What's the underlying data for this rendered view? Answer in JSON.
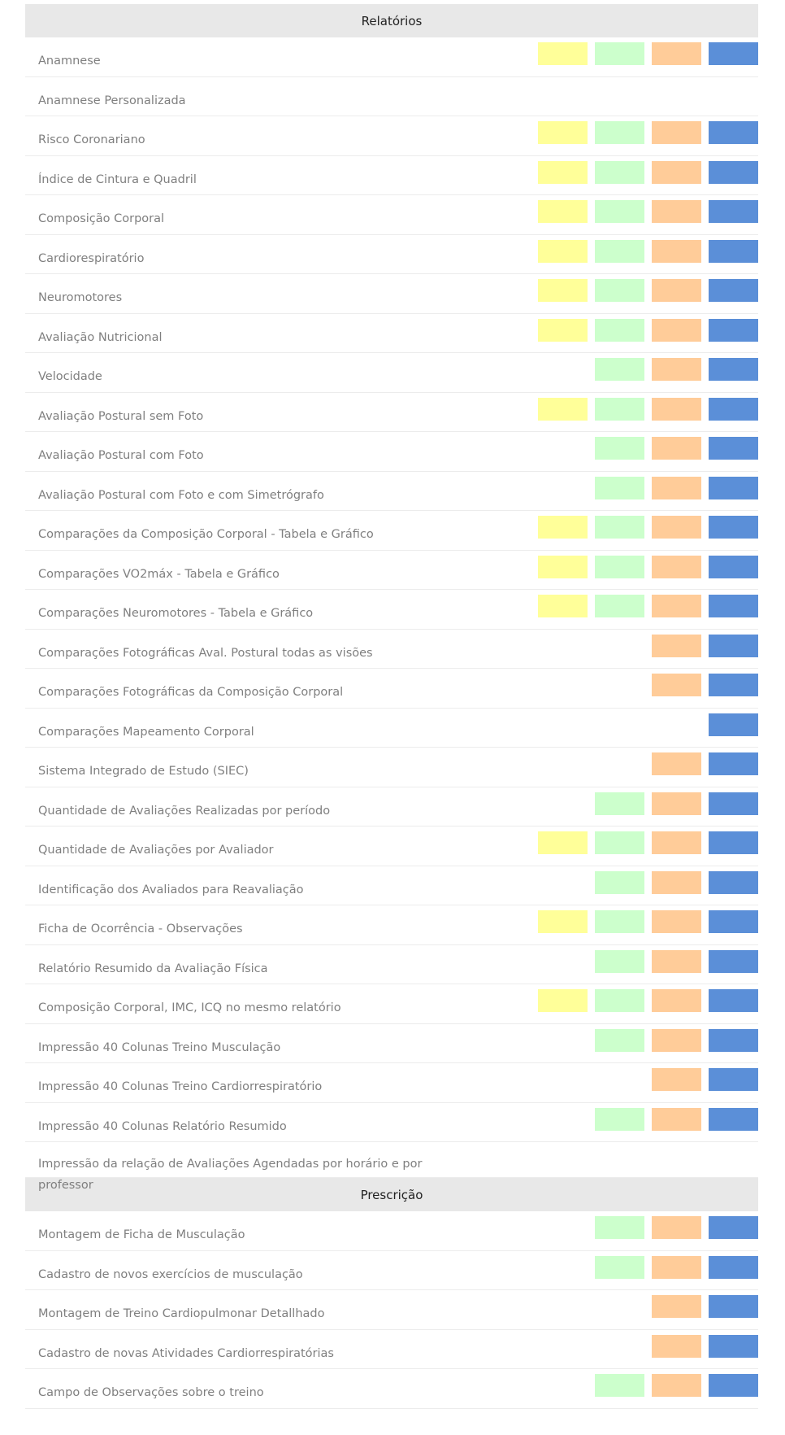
{
  "colors": {
    "yellow": "#ffff99",
    "green": "#ccffcc",
    "orange": "#ffcc99",
    "blue": "#5b8fd8"
  },
  "sections": [
    {
      "title": "Relatórios",
      "rows": [
        {
          "label": "Anamnese",
          "cells": [
            true,
            true,
            true,
            true
          ]
        },
        {
          "label": "Anamnese Personalizada",
          "cells": [
            false,
            false,
            false,
            false
          ]
        },
        {
          "label": "Risco Coronariano",
          "cells": [
            true,
            true,
            true,
            true
          ]
        },
        {
          "label": "Índice de Cintura e Quadril",
          "cells": [
            true,
            true,
            true,
            true
          ]
        },
        {
          "label": "Composição Corporal",
          "cells": [
            true,
            true,
            true,
            true
          ]
        },
        {
          "label": "Cardiorespiratório",
          "cells": [
            true,
            true,
            true,
            true
          ]
        },
        {
          "label": "Neuromotores",
          "cells": [
            true,
            true,
            true,
            true
          ]
        },
        {
          "label": "Avaliação Nutricional",
          "cells": [
            true,
            true,
            true,
            true
          ]
        },
        {
          "label": "Velocidade",
          "cells": [
            false,
            true,
            true,
            true
          ]
        },
        {
          "label": "Avaliação Postural sem Foto",
          "cells": [
            true,
            true,
            true,
            true
          ]
        },
        {
          "label": "Avaliação Postural com Foto",
          "cells": [
            false,
            true,
            true,
            true
          ]
        },
        {
          "label": "Avaliação Postural com Foto e com Simetrógrafo",
          "cells": [
            false,
            true,
            true,
            true
          ]
        },
        {
          "label": "Comparações da Composição Corporal - Tabela e Gráfico",
          "cells": [
            true,
            true,
            true,
            true
          ]
        },
        {
          "label": "Comparações VO2máx - Tabela e Gráfico",
          "cells": [
            true,
            true,
            true,
            true
          ]
        },
        {
          "label": "Comparações Neuromotores - Tabela e Gráfico",
          "cells": [
            true,
            true,
            true,
            true
          ]
        },
        {
          "label": "Comparações Fotográficas Aval. Postural todas as visões",
          "cells": [
            false,
            false,
            true,
            true
          ]
        },
        {
          "label": "Comparações Fotográficas da Composição Corporal",
          "cells": [
            false,
            false,
            true,
            true
          ]
        },
        {
          "label": "Comparações Mapeamento Corporal",
          "cells": [
            false,
            false,
            false,
            true
          ]
        },
        {
          "label": "Sistema Integrado de Estudo (SIEC)",
          "cells": [
            false,
            false,
            true,
            true
          ]
        },
        {
          "label": "Quantidade de Avaliações Realizadas por período",
          "cells": [
            false,
            true,
            true,
            true
          ]
        },
        {
          "label": "Quantidade de Avaliações por Avaliador",
          "cells": [
            true,
            true,
            true,
            true
          ]
        },
        {
          "label": "Identificação dos Avaliados para Reavaliação",
          "cells": [
            false,
            true,
            true,
            true
          ]
        },
        {
          "label": "Ficha de Ocorrência - Observações",
          "cells": [
            true,
            true,
            true,
            true
          ]
        },
        {
          "label": "Relatório Resumido da Avaliação Física",
          "cells": [
            false,
            true,
            true,
            true
          ]
        },
        {
          "label": "Composição Corporal, IMC, ICQ no mesmo relatório",
          "cells": [
            true,
            true,
            true,
            true
          ]
        },
        {
          "label": "Impressão 40 Colunas Treino Musculação",
          "cells": [
            false,
            true,
            true,
            true
          ]
        },
        {
          "label": "Impressão 40 Colunas Treino Cardiorrespiratório",
          "cells": [
            false,
            false,
            true,
            true
          ]
        },
        {
          "label": "Impressão 40 Colunas Relatório Resumido",
          "cells": [
            false,
            true,
            true,
            true
          ]
        },
        {
          "label": "Impressão da relação de Avaliações Agendadas por horário e por professor",
          "cells": [
            false,
            false,
            false,
            false
          ],
          "tall": true
        }
      ]
    },
    {
      "title": "Prescrição",
      "rows": [
        {
          "label": "Montagem de Ficha de Musculação",
          "cells": [
            false,
            true,
            true,
            true
          ]
        },
        {
          "label": "Cadastro de novos exercícios de musculação",
          "cells": [
            false,
            true,
            true,
            true
          ]
        },
        {
          "label": "Montagem de Treino Cardiopulmonar Detallhado",
          "cells": [
            false,
            false,
            true,
            true
          ]
        },
        {
          "label": "Cadastro de novas Atividades Cardiorrespiratórias",
          "cells": [
            false,
            false,
            true,
            true
          ]
        },
        {
          "label": "Campo de Observações sobre o treino",
          "cells": [
            false,
            true,
            true,
            true
          ]
        }
      ]
    }
  ]
}
